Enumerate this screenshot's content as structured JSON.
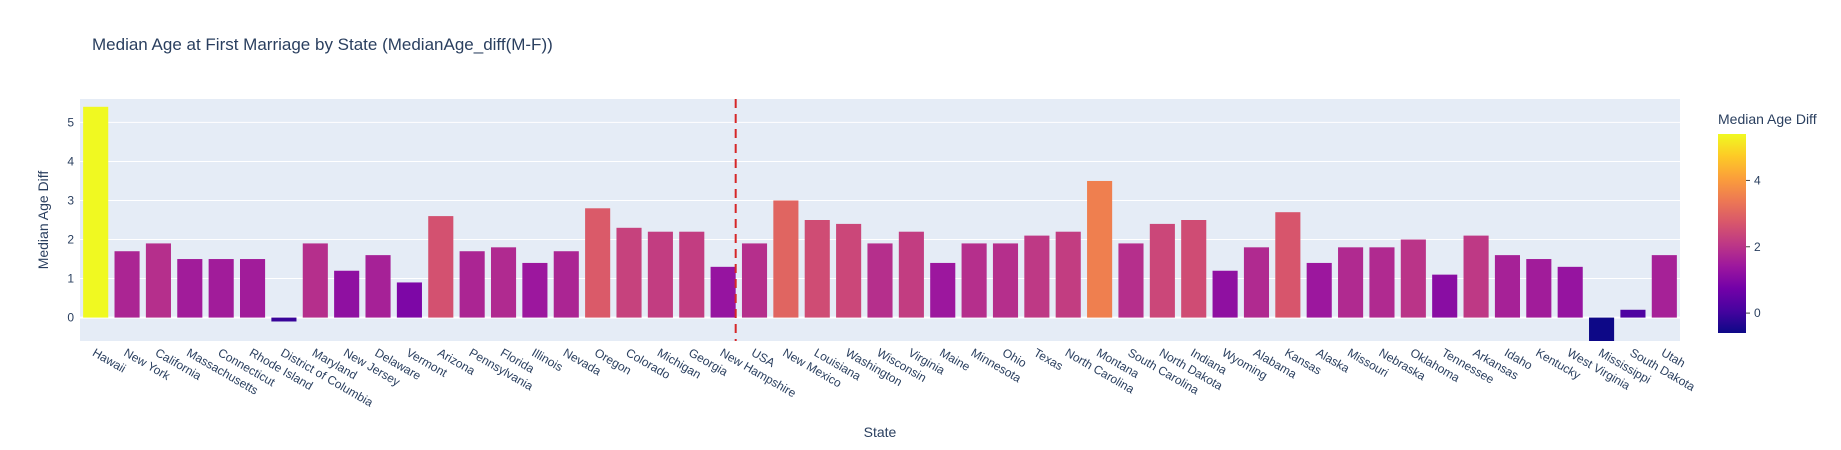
{
  "chart_data": {
    "type": "bar",
    "title": "Median Age at First Marriage by State (MedianAge_diff(M-F))",
    "xlabel": "State",
    "ylabel": "Median Age Diff",
    "ylim": [
      -0.6,
      5.6
    ],
    "yticks": [
      0,
      1,
      2,
      3,
      4,
      5
    ],
    "grid": true,
    "reference_line": {
      "category": "USA",
      "style": "dashed",
      "color": "#d62728"
    },
    "colorbar": {
      "title": "Median Age Diff",
      "ticks": [
        0,
        2,
        4
      ],
      "range": [
        -0.6,
        5.4
      ],
      "colorscale": "plasma"
    },
    "categories": [
      "Hawaii",
      "New York",
      "California",
      "Massachusetts",
      "Connecticut",
      "Rhode Island",
      "District of Columbia",
      "Maryland",
      "New Jersey",
      "Delaware",
      "Vermont",
      "Arizona",
      "Pennsylvania",
      "Florida",
      "Illinois",
      "Nevada",
      "Oregon",
      "Colorado",
      "Michigan",
      "Georgia",
      "New Hampshire",
      "USA",
      "New Mexico",
      "Louisiana",
      "Washington",
      "Wisconsin",
      "Virginia",
      "Maine",
      "Minnesota",
      "Ohio",
      "Texas",
      "North Carolina",
      "Montana",
      "South Carolina",
      "North Dakota",
      "Indiana",
      "Wyoming",
      "Alabama",
      "Kansas",
      "Alaska",
      "Missouri",
      "Nebraska",
      "Oklahoma",
      "Tennessee",
      "Arkansas",
      "Idaho",
      "Kentucky",
      "West Virginia",
      "Mississippi",
      "South Dakota",
      "Utah"
    ],
    "values": [
      5.4,
      1.7,
      1.9,
      1.5,
      1.5,
      1.5,
      -0.1,
      1.9,
      1.2,
      1.6,
      0.9,
      2.6,
      1.7,
      1.8,
      1.4,
      1.7,
      2.8,
      2.3,
      2.2,
      2.2,
      1.3,
      1.9,
      3.0,
      2.5,
      2.4,
      1.9,
      2.2,
      1.4,
      1.9,
      1.9,
      2.1,
      2.2,
      3.5,
      1.9,
      2.4,
      2.5,
      1.2,
      1.8,
      2.7,
      1.4,
      1.8,
      1.8,
      2.0,
      1.1,
      2.1,
      1.6,
      1.5,
      1.3,
      -0.6,
      0.2,
      1.6
    ]
  }
}
